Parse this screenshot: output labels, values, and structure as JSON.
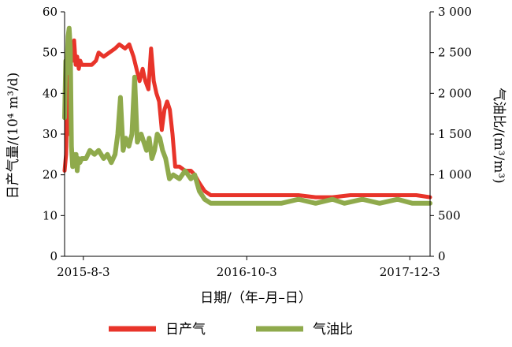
{
  "chart_data": {
    "type": "line",
    "xlabel": "日期/（年–月–日）",
    "ylabel_left": "日产气量/(10⁴ m³/d)",
    "ylabel_right": "气油比/(m³/m³)",
    "x_range": [
      "2015-06-15",
      "2018-01-25"
    ],
    "x_ticks": [
      "2015-8-3",
      "2016-10-3",
      "2017-12-3"
    ],
    "y_left_range": [
      0,
      60
    ],
    "y_left_ticks": [
      "0",
      "10",
      "20",
      "30",
      "40",
      "50",
      "60"
    ],
    "y_right_range": [
      0,
      3000
    ],
    "y_right_ticks": [
      "0",
      "500",
      "1 000",
      "1 500",
      "2 000",
      "2 500",
      "3 000"
    ],
    "grid": false,
    "legend_position": "bottom",
    "series": [
      {
        "name": "日产气",
        "axis": "left",
        "color": "#e8342a",
        "points": [
          [
            "2015-06-15",
            21
          ],
          [
            "2015-06-19",
            25
          ],
          [
            "2015-06-22",
            40
          ],
          [
            "2015-06-25",
            30
          ],
          [
            "2015-06-28",
            47
          ],
          [
            "2015-07-02",
            52
          ],
          [
            "2015-07-06",
            48
          ],
          [
            "2015-07-10",
            53
          ],
          [
            "2015-07-14",
            47
          ],
          [
            "2015-07-18",
            49
          ],
          [
            "2015-07-22",
            46
          ],
          [
            "2015-07-26",
            48
          ],
          [
            "2015-07-30",
            47
          ],
          [
            "2015-08-10",
            47
          ],
          [
            "2015-08-25",
            47
          ],
          [
            "2015-09-05",
            48
          ],
          [
            "2015-09-12",
            50
          ],
          [
            "2015-09-25",
            49
          ],
          [
            "2015-10-10",
            50
          ],
          [
            "2015-10-25",
            51
          ],
          [
            "2015-11-05",
            52
          ],
          [
            "2015-11-20",
            51
          ],
          [
            "2015-12-01",
            52
          ],
          [
            "2015-12-12",
            49
          ],
          [
            "2015-12-20",
            46
          ],
          [
            "2015-12-28",
            43
          ],
          [
            "2016-01-05",
            46
          ],
          [
            "2016-01-12",
            43
          ],
          [
            "2016-01-20",
            41
          ],
          [
            "2016-01-27",
            51
          ],
          [
            "2016-02-03",
            43
          ],
          [
            "2016-02-10",
            40
          ],
          [
            "2016-02-17",
            38
          ],
          [
            "2016-02-24",
            31
          ],
          [
            "2016-03-02",
            36
          ],
          [
            "2016-03-09",
            38
          ],
          [
            "2016-03-16",
            36
          ],
          [
            "2016-03-23",
            30
          ],
          [
            "2016-03-30",
            22
          ],
          [
            "2016-04-10",
            22
          ],
          [
            "2016-04-25",
            21
          ],
          [
            "2016-05-10",
            21
          ],
          [
            "2016-05-20",
            20
          ],
          [
            "2016-06-01",
            18
          ],
          [
            "2016-06-15",
            16
          ],
          [
            "2016-07-01",
            15
          ],
          [
            "2016-08-01",
            15
          ],
          [
            "2016-09-01",
            15
          ],
          [
            "2016-10-03",
            15
          ],
          [
            "2016-11-15",
            15
          ],
          [
            "2017-01-01",
            15
          ],
          [
            "2017-02-15",
            15
          ],
          [
            "2017-04-01",
            14.5
          ],
          [
            "2017-05-15",
            14.5
          ],
          [
            "2017-07-01",
            15
          ],
          [
            "2017-08-15",
            15
          ],
          [
            "2017-10-01",
            15
          ],
          [
            "2017-11-15",
            15
          ],
          [
            "2017-12-20",
            15
          ],
          [
            "2018-01-25",
            14.5
          ]
        ]
      },
      {
        "name": "气油比",
        "axis": "right",
        "color": "#8faa4c",
        "points": [
          [
            "2015-06-15",
            1700
          ],
          [
            "2015-06-18",
            2400
          ],
          [
            "2015-06-21",
            2250
          ],
          [
            "2015-06-24",
            2700
          ],
          [
            "2015-06-27",
            2800
          ],
          [
            "2015-06-30",
            2550
          ],
          [
            "2015-07-03",
            1350
          ],
          [
            "2015-07-06",
            1100
          ],
          [
            "2015-07-09",
            1250
          ],
          [
            "2015-07-12",
            1150
          ],
          [
            "2015-07-15",
            1250
          ],
          [
            "2015-07-18",
            1050
          ],
          [
            "2015-07-21",
            1200
          ],
          [
            "2015-07-25",
            1150
          ],
          [
            "2015-07-30",
            1200
          ],
          [
            "2015-08-10",
            1200
          ],
          [
            "2015-08-20",
            1300
          ],
          [
            "2015-09-01",
            1250
          ],
          [
            "2015-09-12",
            1300
          ],
          [
            "2015-09-25",
            1200
          ],
          [
            "2015-10-05",
            1250
          ],
          [
            "2015-10-15",
            1150
          ],
          [
            "2015-10-25",
            1250
          ],
          [
            "2015-11-01",
            1500
          ],
          [
            "2015-11-08",
            1950
          ],
          [
            "2015-11-15",
            1300
          ],
          [
            "2015-11-22",
            1450
          ],
          [
            "2015-11-30",
            1350
          ],
          [
            "2015-12-08",
            1500
          ],
          [
            "2015-12-15",
            2200
          ],
          [
            "2015-12-22",
            1400
          ],
          [
            "2016-01-01",
            1500
          ],
          [
            "2016-01-08",
            1400
          ],
          [
            "2016-01-15",
            1300
          ],
          [
            "2016-01-22",
            1450
          ],
          [
            "2016-01-29",
            1200
          ],
          [
            "2016-02-05",
            1300
          ],
          [
            "2016-02-12",
            1500
          ],
          [
            "2016-02-19",
            1450
          ],
          [
            "2016-02-26",
            1300
          ],
          [
            "2016-03-05",
            1200
          ],
          [
            "2016-03-15",
            950
          ],
          [
            "2016-03-25",
            1000
          ],
          [
            "2016-04-10",
            950
          ],
          [
            "2016-04-25",
            1050
          ],
          [
            "2016-05-10",
            950
          ],
          [
            "2016-05-20",
            1000
          ],
          [
            "2016-06-01",
            800
          ],
          [
            "2016-06-15",
            700
          ],
          [
            "2016-07-01",
            650
          ],
          [
            "2016-08-01",
            650
          ],
          [
            "2016-09-01",
            650
          ],
          [
            "2016-10-03",
            650
          ],
          [
            "2016-11-15",
            650
          ],
          [
            "2017-01-01",
            650
          ],
          [
            "2017-02-15",
            700
          ],
          [
            "2017-04-01",
            650
          ],
          [
            "2017-05-15",
            700
          ],
          [
            "2017-06-15",
            650
          ],
          [
            "2017-08-01",
            700
          ],
          [
            "2017-09-15",
            650
          ],
          [
            "2017-11-01",
            700
          ],
          [
            "2017-12-10",
            650
          ],
          [
            "2018-01-25",
            650
          ]
        ]
      }
    ]
  }
}
